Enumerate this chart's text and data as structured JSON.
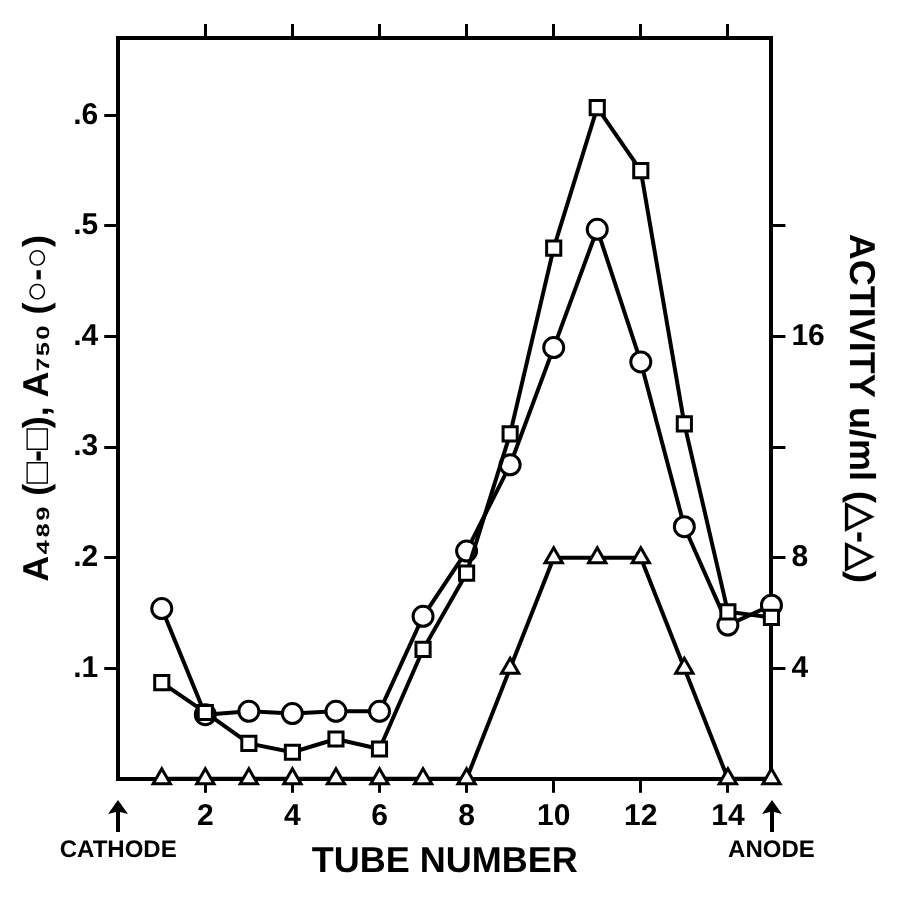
{
  "chart_data": {
    "type": "line",
    "xlabel": "TUBE NUMBER",
    "ylabel": "A₄₈₉ (□-□), A₇₅₀ (○-○)",
    "y2label": "ACTIVITY u/ml (△-△)",
    "annotations": [
      "CATHODE",
      "ANODE"
    ],
    "x": [
      1,
      2,
      3,
      4,
      5,
      6,
      7,
      8,
      9,
      10,
      11,
      12,
      13,
      14,
      15
    ],
    "xlim": [
      0,
      15
    ],
    "xticks": [
      2,
      4,
      6,
      8,
      10,
      12,
      14
    ],
    "ylim": [
      0,
      0.67
    ],
    "yticks": [
      {
        "value": 0.1,
        "label": ".1"
      },
      {
        "value": 0.2,
        "label": ".2"
      },
      {
        "value": 0.3,
        "label": ".3"
      },
      {
        "value": 0.4,
        "label": ".4"
      },
      {
        "value": 0.5,
        "label": ".5"
      },
      {
        "value": 0.6,
        "label": ".6"
      }
    ],
    "y2lim": [
      0,
      26.8
    ],
    "y2ticks": [
      4,
      8,
      {
        "value": 12,
        "label": null
      },
      16,
      {
        "value": 20,
        "label": null
      }
    ],
    "grid": false,
    "legend": false,
    "line_style": "solid",
    "series": [
      {
        "color": "#000000",
        "marker": "square",
        "values": [
          0.087,
          0.06,
          0.032,
          0.024,
          0.036,
          0.027,
          0.117,
          0.186,
          0.312,
          0.48,
          0.607,
          0.55,
          0.321,
          0.151,
          0.146
        ]
      },
      {
        "color": "#000000",
        "marker": "circle",
        "values": [
          0.154,
          0.058,
          0.061,
          0.059,
          0.061,
          0.061,
          0.147,
          0.206,
          0.284,
          0.39,
          0.497,
          0.377,
          0.228,
          0.139,
          0.157
        ]
      },
      {
        "color": "#000000",
        "marker": "triangle",
        "axis": "y2",
        "values": [
          0,
          0,
          0,
          0,
          0,
          0,
          0,
          0,
          4,
          8,
          8,
          8,
          4,
          0,
          0
        ]
      }
    ]
  }
}
